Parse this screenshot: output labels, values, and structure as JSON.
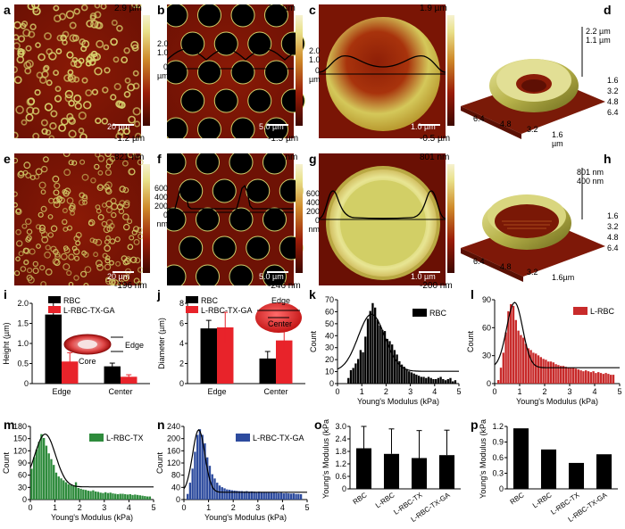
{
  "panels": {
    "a": {
      "letter": "a",
      "top_scale": "2.9 µm",
      "bottom_scale": "-1.2 µm",
      "scalebar": "20 µm"
    },
    "b": {
      "letter": "b",
      "top_scale": "1.5 µm",
      "bottom_scale": "-1.5 µm",
      "scalebar": "5.0 µm",
      "y_ticks": [
        "2.0",
        "1.0",
        "0"
      ],
      "y_unit": "µm"
    },
    "c": {
      "letter": "c",
      "top_scale": "1.9 µm",
      "bottom_scale": "-0.5 µm",
      "scalebar": "1.0 µm",
      "y_ticks": [
        "2.0",
        "1.0",
        "0"
      ],
      "y_unit": "µm"
    },
    "d": {
      "letter": "d",
      "z_ticks": [
        "2.2 µm",
        "1.1 µm"
      ],
      "right_ticks": [
        "1.6",
        "3.2",
        "4.8",
        "6.4"
      ],
      "bottom_ticks": [
        "6.4",
        "4.8",
        "3.2",
        "1.6 µm"
      ]
    },
    "e": {
      "letter": "e",
      "top_scale": "821 nm",
      "bottom_scale": "-196 nm",
      "scalebar": "20 µm"
    },
    "f": {
      "letter": "f",
      "top_scale": "622 nm",
      "bottom_scale": "-246 nm",
      "scalebar": "5.0 µm",
      "y_ticks": [
        "600",
        "400",
        "200",
        "0"
      ],
      "y_unit": "nm"
    },
    "g": {
      "letter": "g",
      "top_scale": "801 nm",
      "bottom_scale": "-200 nm",
      "scalebar": "1.0 µm",
      "y_ticks": [
        "600",
        "400",
        "200",
        "0"
      ],
      "y_unit": "nm"
    },
    "h": {
      "letter": "h",
      "z_ticks": [
        "801 nm",
        "400 nm"
      ],
      "right_ticks": [
        "1.6",
        "3.2",
        "4.8",
        "6.4"
      ],
      "bottom_ticks": [
        "6.4",
        "4.8",
        "3.2",
        "1.6µm"
      ]
    },
    "i": {
      "letter": "i"
    },
    "j": {
      "letter": "j"
    },
    "k": {
      "letter": "k"
    },
    "l": {
      "letter": "l"
    },
    "m": {
      "letter": "m"
    },
    "n": {
      "letter": "n"
    },
    "o": {
      "letter": "o"
    },
    "p": {
      "letter": "p"
    }
  },
  "chart_data": [
    {
      "id": "i",
      "type": "bar",
      "ylabel": "Height (µm)",
      "ylim": [
        0,
        2
      ],
      "yticks": [
        "0",
        "0.5",
        "1.0",
        "1.5",
        "2.0"
      ],
      "categories": [
        "Edge",
        "Center"
      ],
      "series": [
        {
          "name": "RBC",
          "color": "#000000",
          "values": [
            1.72,
            0.43
          ],
          "errors": [
            0.3,
            0.08
          ]
        },
        {
          "name": "L-RBC-TX-GA",
          "color": "#e8232a",
          "values": [
            0.55,
            0.17
          ],
          "errors": [
            0.22,
            0.05
          ]
        }
      ],
      "annotations": [
        "Edge",
        "Core"
      ]
    },
    {
      "id": "j",
      "type": "bar",
      "ylabel": "Diameter (µm)",
      "ylim": [
        0,
        8
      ],
      "yticks": [
        "0",
        "2",
        "4",
        "6",
        "8"
      ],
      "categories": [
        "Edge",
        "Center"
      ],
      "series": [
        {
          "name": "RBC",
          "color": "#000000",
          "values": [
            5.5,
            2.5
          ],
          "errors": [
            0.8,
            0.7
          ]
        },
        {
          "name": "L-RBC-TX-GA",
          "color": "#e8232a",
          "values": [
            5.6,
            4.3
          ],
          "errors": [
            1.5,
            0.9
          ]
        }
      ],
      "annotations": [
        "Edge",
        "Center"
      ]
    },
    {
      "id": "k",
      "type": "bar",
      "name": "RBC",
      "color": "#000000",
      "xlabel": "Young's Modulus (kPa)",
      "ylabel": "Count",
      "xlim": [
        0,
        5
      ],
      "ylim": [
        0,
        75
      ],
      "xticks": [
        "0",
        "1",
        "2",
        "3",
        "4",
        "5"
      ],
      "yticks": [
        "0",
        "10",
        "20",
        "30",
        "40",
        "50",
        "60",
        "70"
      ],
      "bin_width": 0.1,
      "bin_start": 0.45,
      "values": [
        5,
        12,
        14,
        18,
        22,
        30,
        28,
        42,
        58,
        65,
        72,
        68,
        57,
        52,
        48,
        47,
        40,
        38,
        35,
        30,
        26,
        20,
        17,
        15,
        13,
        11,
        10,
        9,
        8,
        7,
        6,
        6,
        5,
        6,
        5,
        4,
        4,
        5,
        6,
        4,
        3,
        4,
        5,
        2,
        3
      ],
      "fit": {
        "peak_x": 1.4,
        "peak_y": 62,
        "sigma": 0.55,
        "baseline": 11
      }
    },
    {
      "id": "l",
      "type": "bar",
      "name": "L-RBC",
      "color": "#c82b2b",
      "xlabel": "Young's Modulus (kPa)",
      "ylabel": "Count",
      "xlim": [
        0,
        5
      ],
      "ylim": [
        0,
        95
      ],
      "xticks": [
        "0",
        "1",
        "2",
        "3",
        "4",
        "5"
      ],
      "yticks": [
        "0",
        "30",
        "60",
        "90"
      ],
      "bin_width": 0.1,
      "bin_start": 0.15,
      "values": [
        4,
        18,
        35,
        58,
        82,
        90,
        88,
        72,
        60,
        55,
        52,
        45,
        40,
        38,
        35,
        34,
        32,
        30,
        28,
        27,
        25,
        25,
        24,
        22,
        21,
        20,
        20,
        19,
        18,
        18,
        18,
        17,
        16,
        15,
        14,
        15,
        14,
        13,
        14,
        12,
        13,
        12,
        11,
        12,
        11,
        10,
        10
      ],
      "fit": {
        "peak_x": 0.8,
        "peak_y": 92,
        "sigma": 0.32,
        "baseline": 18
      }
    },
    {
      "id": "m",
      "type": "bar",
      "name": "L-RBC-TX",
      "color": "#2e8b3c",
      "xlabel": "Young's Modulus (kPa)",
      "ylabel": "Count",
      "xlim": [
        0,
        5
      ],
      "ylim": [
        0,
        190
      ],
      "xticks": [
        "0",
        "1",
        "2",
        "3",
        "4",
        "5"
      ],
      "yticks": [
        "0",
        "30",
        "60",
        "90",
        "120",
        "150",
        "180"
      ],
      "bin_width": 0.1,
      "bin_start": 0.05,
      "values": [
        80,
        110,
        130,
        150,
        170,
        160,
        140,
        120,
        105,
        90,
        70,
        60,
        55,
        50,
        45,
        40,
        38,
        35,
        45,
        30,
        28,
        26,
        25,
        23,
        22,
        24,
        21,
        20,
        18,
        17,
        19,
        17,
        18,
        16,
        15,
        14,
        15,
        15,
        14,
        13,
        14,
        12,
        13,
        12,
        11,
        10,
        9,
        8,
        8
      ],
      "fit": {
        "peak_x": 0.6,
        "peak_y": 170,
        "sigma": 0.42,
        "baseline": 33
      }
    },
    {
      "id": "n",
      "type": "bar",
      "name": "L-RBC-TX-GA",
      "color": "#2d4b9e",
      "xlabel": "Young's Modulus (kPa)",
      "ylabel": "Count",
      "xlim": [
        0,
        5
      ],
      "ylim": [
        0,
        260
      ],
      "xticks": [
        "0",
        "1",
        "2",
        "3",
        "4",
        "5"
      ],
      "yticks": [
        "0",
        "40",
        "80",
        "120",
        "160",
        "200",
        "240"
      ],
      "bin_width": 0.1,
      "bin_start": 0.15,
      "values": [
        20,
        60,
        110,
        170,
        230,
        250,
        230,
        200,
        150,
        120,
        90,
        75,
        60,
        50,
        44,
        40,
        36,
        35,
        33,
        32,
        31,
        30,
        30,
        29,
        30,
        28,
        29,
        28,
        27,
        28,
        26,
        27,
        26,
        25,
        24,
        25,
        24,
        23,
        24,
        22,
        23,
        22,
        21,
        22,
        20,
        20,
        19
      ],
      "fit": {
        "peak_x": 0.6,
        "peak_y": 248,
        "sigma": 0.25,
        "baseline": 26
      }
    },
    {
      "id": "o",
      "type": "bar",
      "color": "#000000",
      "ylabel": "Young's Modulus (kPa)",
      "ylim": [
        0,
        3
      ],
      "yticks": [
        "0",
        "0.6",
        "1.2",
        "1.8",
        "2.4",
        "3.0"
      ],
      "categories": [
        "RBC",
        "L-RBC",
        "L-RBC-TX",
        "L-RBC-TX-GA"
      ],
      "values": [
        1.95,
        1.68,
        1.48,
        1.62
      ],
      "errors": [
        1.05,
        1.2,
        1.32,
        1.2
      ]
    },
    {
      "id": "p",
      "type": "bar",
      "color": "#000000",
      "ylabel": "Young's Modulus (kPa)",
      "ylim": [
        0,
        1.3
      ],
      "yticks": [
        "0",
        "0.3",
        "0.6",
        "0.9",
        "1.2"
      ],
      "categories": [
        "RBC",
        "L-RBC",
        "L-RBC-TX",
        "L-RBC-TX-GA"
      ],
      "values": [
        1.26,
        0.82,
        0.54,
        0.72
      ]
    }
  ]
}
